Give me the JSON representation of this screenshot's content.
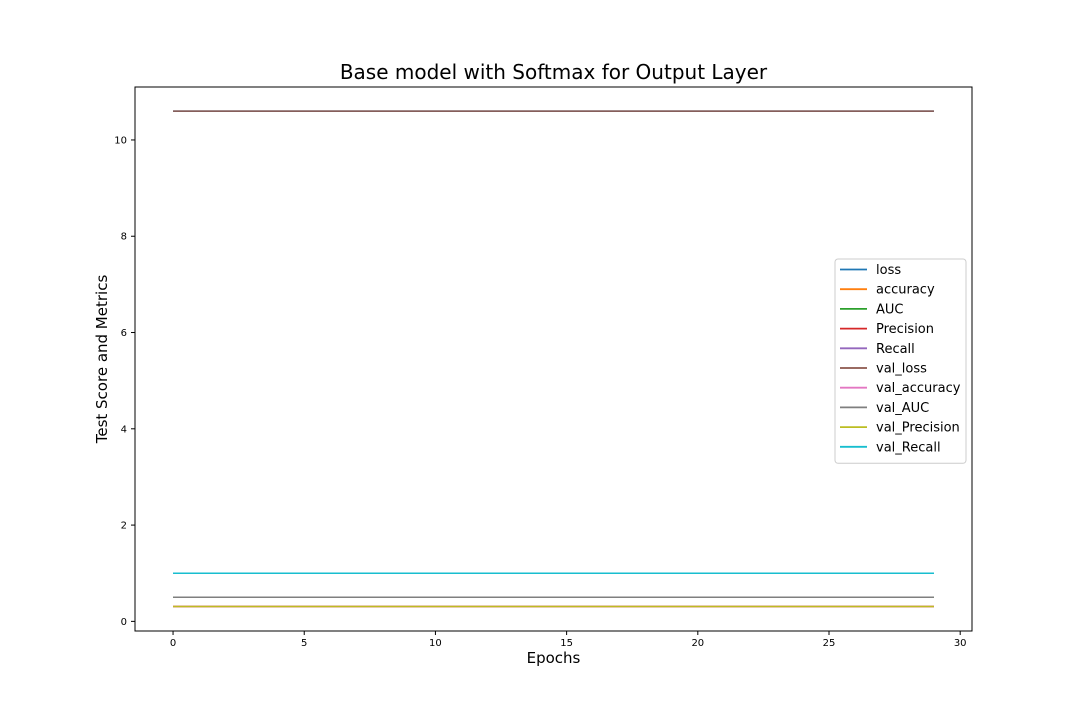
{
  "chart_data": {
    "type": "line",
    "title": "Base model with Softmax for Output Layer",
    "xlabel": "Epochs",
    "ylabel": "Test Score and Metrics",
    "xlim": [
      -1.45,
      30.45
    ],
    "ylim": [
      -0.2,
      11.1
    ],
    "xticks": [
      0,
      5,
      10,
      15,
      20,
      25,
      30
    ],
    "yticks": [
      0,
      2,
      4,
      6,
      8,
      10
    ],
    "legend": "center-right",
    "grid": false,
    "x": [
      0,
      29
    ],
    "series": [
      {
        "name": "loss",
        "color": "#1f77b4",
        "values": [
          10.6,
          10.6
        ]
      },
      {
        "name": "accuracy",
        "color": "#ff7f0e",
        "values": [
          0.31,
          0.31
        ]
      },
      {
        "name": "AUC",
        "color": "#2ca02c",
        "values": [
          0.5,
          0.5
        ]
      },
      {
        "name": "Precision",
        "color": "#d62728",
        "values": [
          0.31,
          0.31
        ]
      },
      {
        "name": "Recall",
        "color": "#9467bd",
        "values": [
          1.0,
          1.0
        ]
      },
      {
        "name": "val_loss",
        "color": "#8c564b",
        "values": [
          10.6,
          10.6
        ]
      },
      {
        "name": "val_accuracy",
        "color": "#e377c2",
        "values": [
          0.31,
          0.31
        ]
      },
      {
        "name": "val_AUC",
        "color": "#7f7f7f",
        "values": [
          0.5,
          0.5
        ]
      },
      {
        "name": "val_Precision",
        "color": "#bcbd22",
        "values": [
          0.31,
          0.31
        ]
      },
      {
        "name": "val_Recall",
        "color": "#17becf",
        "values": [
          1.0,
          1.0
        ]
      }
    ]
  }
}
